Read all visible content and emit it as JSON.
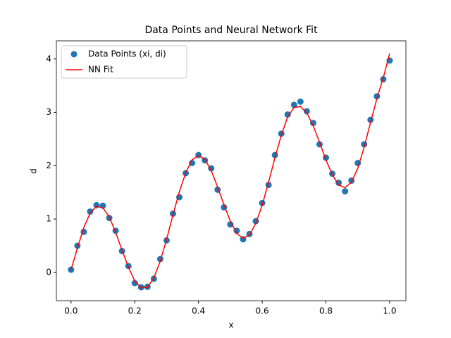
{
  "chart_data": {
    "type": "scatter-line",
    "title": "Data Points and Neural Network Fit",
    "x_label": "x",
    "y_label": "d",
    "x": [
      0,
      0.02,
      0.04,
      0.06,
      0.08,
      0.1,
      0.12,
      0.14,
      0.16,
      0.18,
      0.2,
      0.22,
      0.24,
      0.26,
      0.28,
      0.3,
      0.32,
      0.34,
      0.36,
      0.38,
      0.4,
      0.42,
      0.44,
      0.46,
      0.48,
      0.5,
      0.52,
      0.54,
      0.56,
      0.58,
      0.6,
      0.62,
      0.64,
      0.66,
      0.68,
      0.7,
      0.72,
      0.74,
      0.76,
      0.78,
      0.8,
      0.82,
      0.84,
      0.86,
      0.88,
      0.9,
      0.92,
      0.94,
      0.96,
      0.98,
      1
    ],
    "series": [
      {
        "name": "Data Points (xi, di)",
        "kind": "scatter",
        "color": "#1f77b4",
        "values": [
          0.05,
          0.5,
          0.76,
          1.14,
          1.26,
          1.25,
          1.02,
          0.78,
          0.4,
          0.12,
          -0.2,
          -0.28,
          -0.27,
          -0.12,
          0.25,
          0.6,
          1.1,
          1.41,
          1.86,
          2.05,
          2.2,
          2.1,
          1.95,
          1.55,
          1.22,
          0.9,
          0.78,
          0.62,
          0.72,
          0.96,
          1.3,
          1.64,
          2.2,
          2.6,
          2.96,
          3.14,
          3.2,
          3.02,
          2.8,
          2.4,
          2.15,
          1.85,
          1.68,
          1.52,
          1.72,
          2.05,
          2.4,
          2.86,
          3.3,
          3.62,
          3.97
        ]
      },
      {
        "name": "NN Fit",
        "kind": "line",
        "color": "#ff0000",
        "values": [
          0.05,
          0.45,
          0.84,
          1.11,
          1.24,
          1.21,
          1.04,
          0.75,
          0.42,
          0.1,
          -0.16,
          -0.29,
          -0.28,
          -0.1,
          0.21,
          0.62,
          1.08,
          1.51,
          1.87,
          2.11,
          2.19,
          2.12,
          1.91,
          1.6,
          1.27,
          0.96,
          0.73,
          0.64,
          0.7,
          0.92,
          1.26,
          1.69,
          2.15,
          2.57,
          2.92,
          3.09,
          3.11,
          2.99,
          2.75,
          2.44,
          2.11,
          1.83,
          1.64,
          1.59,
          1.69,
          1.95,
          2.35,
          2.81,
          3.26,
          3.65,
          4.1
        ]
      }
    ],
    "xlim": [
      -0.046,
      1.051
    ],
    "ylim": [
      -0.53,
      4.34
    ],
    "xticks": [
      {
        "value": 0,
        "label": "0.0"
      },
      0.2,
      0.4,
      0.6,
      0.8,
      {
        "value": 1,
        "label": "1.0"
      }
    ],
    "yticks": [
      0,
      1,
      2,
      3,
      4
    ],
    "legend": "upper left"
  }
}
